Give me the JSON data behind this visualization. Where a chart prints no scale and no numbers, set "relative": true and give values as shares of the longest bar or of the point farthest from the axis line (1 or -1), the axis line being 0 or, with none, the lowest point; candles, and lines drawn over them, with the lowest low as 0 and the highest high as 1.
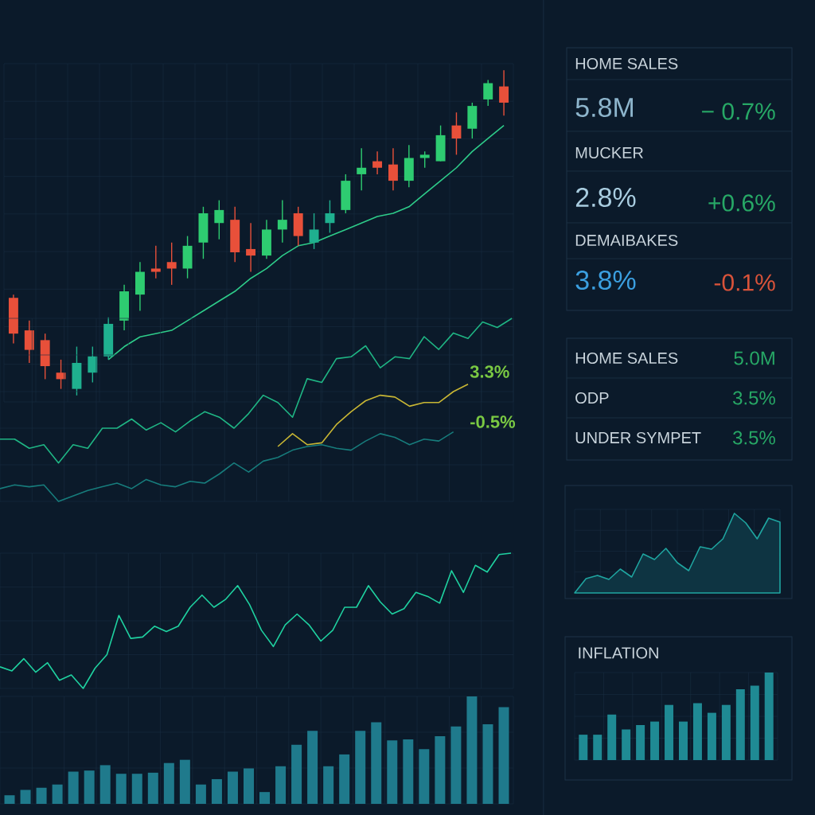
{
  "chart_data": [
    {
      "type": "candlestick",
      "relative": true,
      "grid": true,
      "categories": [
        null,
        null,
        null,
        null,
        null,
        null,
        null,
        null,
        null,
        null,
        null,
        null,
        null,
        null,
        null,
        null,
        null,
        null,
        null,
        null,
        null,
        null,
        null,
        null,
        null,
        null,
        null,
        null,
        null,
        null,
        null,
        null
      ],
      "ohlc": [
        [
          0.3,
          0.31,
          0.16,
          0.19
        ],
        [
          0.2,
          0.23,
          0.1,
          0.14
        ],
        [
          0.17,
          0.19,
          0.05,
          0.09
        ],
        [
          0.07,
          0.11,
          0.02,
          0.05
        ],
        [
          0.02,
          0.15,
          0.0,
          0.1
        ],
        [
          0.07,
          0.15,
          0.04,
          0.12
        ],
        [
          0.12,
          0.24,
          0.11,
          0.22
        ],
        [
          0.23,
          0.34,
          0.2,
          0.32
        ],
        [
          0.31,
          0.41,
          0.26,
          0.38
        ],
        [
          0.39,
          0.46,
          0.36,
          0.38
        ],
        [
          0.41,
          0.47,
          0.34,
          0.39
        ],
        [
          0.39,
          0.49,
          0.36,
          0.46
        ],
        [
          0.47,
          0.58,
          0.42,
          0.56
        ],
        [
          0.53,
          0.6,
          0.48,
          0.57
        ],
        [
          0.54,
          0.58,
          0.41,
          0.44
        ],
        [
          0.45,
          0.53,
          0.38,
          0.43
        ],
        [
          0.43,
          0.54,
          0.42,
          0.51
        ],
        [
          0.51,
          0.6,
          0.47,
          0.54
        ],
        [
          0.56,
          0.58,
          0.46,
          0.49
        ],
        [
          0.47,
          0.56,
          0.45,
          0.51
        ],
        [
          0.53,
          0.6,
          0.5,
          0.56
        ],
        [
          0.57,
          0.68,
          0.56,
          0.66
        ],
        [
          0.68,
          0.76,
          0.63,
          0.7
        ],
        [
          0.72,
          0.75,
          0.68,
          0.7
        ],
        [
          0.71,
          0.76,
          0.63,
          0.66
        ],
        [
          0.66,
          0.77,
          0.64,
          0.73
        ],
        [
          0.73,
          0.75,
          0.7,
          0.74
        ],
        [
          0.72,
          0.83,
          0.72,
          0.8
        ],
        [
          0.83,
          0.87,
          0.74,
          0.79
        ],
        [
          0.82,
          0.9,
          0.79,
          0.89
        ],
        [
          0.91,
          0.97,
          0.89,
          0.96
        ],
        [
          0.95,
          1.0,
          0.86,
          0.9
        ]
      ],
      "colors": [
        "#e8503a",
        "#e8503a",
        "#e8503a",
        "#e8503a",
        "#1fb08f",
        "#1fb08f",
        "#1fb08f",
        "#2ecc71",
        "#2ecc71",
        "#e8503a",
        "#e8503a",
        "#2ecc71",
        "#2ecc71",
        "#2ecc71",
        "#e8503a",
        "#e8503a",
        "#2ecc71",
        "#2ecc71",
        "#e8503a",
        "#1fb08f",
        "#1fb08f",
        "#2ecc71",
        "#2ecc71",
        "#e8503a",
        "#e8503a",
        "#2ecc71",
        "#2ecc71",
        "#2ecc71",
        "#e8503a",
        "#2ecc71",
        "#2ecc71",
        "#e8503a"
      ],
      "series": [
        {
          "type": "line",
          "color": "#2ecc8a",
          "values": [
            null,
            null,
            null,
            null,
            null,
            null,
            0.11,
            0.15,
            0.18,
            0.19,
            0.2,
            0.23,
            0.26,
            0.29,
            0.32,
            0.36,
            0.39,
            0.43,
            0.46,
            0.47,
            0.49,
            0.51,
            0.53,
            0.55,
            0.56,
            0.58,
            0.62,
            0.66,
            0.7,
            0.75,
            0.79,
            0.83
          ]
        }
      ]
    },
    {
      "type": "line",
      "relative": true,
      "grid": true,
      "categories": [
        null,
        null,
        null,
        null,
        null,
        null,
        null,
        null,
        null,
        null,
        null,
        null,
        null,
        null,
        null,
        null,
        null,
        null,
        null,
        null,
        null,
        null,
        null,
        null,
        null,
        null,
        null,
        null,
        null,
        null,
        null,
        null,
        null,
        null,
        null,
        null
      ],
      "series": [
        {
          "color": "#1fb584",
          "values": [
            0.34,
            0.34,
            0.29,
            0.31,
            0.21,
            0.31,
            0.29,
            0.4,
            0.4,
            0.45,
            0.39,
            0.43,
            0.38,
            0.44,
            0.49,
            0.46,
            0.4,
            0.48,
            0.58,
            0.54,
            0.46,
            0.67,
            0.65,
            0.78,
            0.79,
            0.85,
            0.73,
            0.79,
            0.78,
            0.9,
            0.83,
            0.92,
            0.89,
            0.98,
            0.95,
            1.0
          ]
        },
        {
          "color": "#177c7c",
          "values": [
            0.07,
            0.09,
            0.08,
            0.09,
            0.0,
            0.03,
            0.06,
            0.08,
            0.1,
            0.07,
            0.12,
            0.09,
            0.08,
            0.11,
            0.1,
            0.15,
            0.21,
            0.16,
            0.22,
            0.24,
            0.28,
            0.3,
            0.31,
            0.29,
            0.28,
            0.33,
            0.37,
            0.35,
            0.31,
            0.34,
            0.33,
            0.38,
            null,
            null,
            null,
            null
          ]
        },
        {
          "color": "#c8b634",
          "values": [
            null,
            null,
            null,
            null,
            null,
            null,
            null,
            null,
            null,
            null,
            null,
            null,
            null,
            null,
            null,
            null,
            null,
            null,
            null,
            0.3,
            0.37,
            0.31,
            0.32,
            0.42,
            0.49,
            0.55,
            0.58,
            0.57,
            0.52,
            0.54,
            0.54,
            0.6,
            0.64,
            null,
            null,
            null
          ]
        }
      ],
      "annotations": [
        "3.3%",
        "-0.5%"
      ]
    },
    {
      "type": "line",
      "relative": true,
      "grid": true,
      "color": "#1fd1a0",
      "categories": [
        null,
        null,
        null,
        null,
        null,
        null,
        null,
        null,
        null,
        null,
        null,
        null,
        null,
        null,
        null,
        null,
        null,
        null,
        null,
        null,
        null,
        null,
        null,
        null,
        null,
        null,
        null,
        null,
        null,
        null,
        null,
        null,
        null,
        null,
        null,
        null,
        null,
        null,
        null,
        null,
        null,
        null,
        null,
        null
      ],
      "values": [
        0.16,
        0.13,
        0.22,
        0.12,
        0.19,
        0.06,
        0.1,
        0,
        0.15,
        0.25,
        0.54,
        0.37,
        0.38,
        0.46,
        0.42,
        0.46,
        0.6,
        0.69,
        0.6,
        0.66,
        0.76,
        0.62,
        0.43,
        0.31,
        0.47,
        0.55,
        0.47,
        0.35,
        0.43,
        0.6,
        0.6,
        0.76,
        0.64,
        0.55,
        0.59,
        0.71,
        0.68,
        0.63,
        0.87,
        0.71,
        0.91,
        0.86,
        0.99,
        1.0
      ]
    },
    {
      "type": "bar",
      "relative": true,
      "grid": true,
      "color": "#1f7a8c",
      "categories": [
        null,
        null,
        null,
        null,
        null,
        null,
        null,
        null,
        null,
        null,
        null,
        null,
        null,
        null,
        null,
        null,
        null,
        null,
        null,
        null,
        null,
        null,
        null,
        null,
        null,
        null,
        null,
        null,
        null,
        null,
        null,
        null
      ],
      "values": [
        0.08,
        0.13,
        0.15,
        0.18,
        0.3,
        0.31,
        0.36,
        0.28,
        0.28,
        0.29,
        0.38,
        0.41,
        0.18,
        0.23,
        0.3,
        0.33,
        0.11,
        0.35,
        0.55,
        0.68,
        0.35,
        0.46,
        0.68,
        0.76,
        0.59,
        0.6,
        0.51,
        0.63,
        0.72,
        1.0,
        0.74,
        0.9
      ]
    },
    {
      "type": "other",
      "annotations": [
        "HOME SALES",
        "5.8M",
        "− 0.7%",
        "MUCKER",
        "2.8%",
        "+0.6%",
        "DEMAIBAKES",
        "3.8%",
        "-0.1%"
      ],
      "colors": [
        "#c9d4dc",
        "#8db5cc",
        "#27a866",
        "#c9d4dc",
        "#a9cde0",
        "#27a866",
        "#c9d4dc",
        "#3b9fe0",
        "#d9533a"
      ]
    },
    {
      "type": "other",
      "annotations": [
        "HOME SALES",
        "5.0M",
        "ODP",
        "3.5%",
        "UNDER SYMPET",
        "3.5%"
      ],
      "colors": [
        "#c9d4dc",
        "#27a866",
        "#c9d4dc",
        "#27a866",
        "#c9d4dc",
        "#27a866"
      ]
    },
    {
      "type": "area",
      "relative": true,
      "grid": true,
      "color": "#1fa5a0",
      "categories": [
        null,
        null,
        null,
        null,
        null,
        null,
        null,
        null,
        null,
        null,
        null,
        null,
        null,
        null,
        null,
        null,
        null,
        null,
        null
      ],
      "values": [
        0,
        0.18,
        0.22,
        0.17,
        0.3,
        0.2,
        0.49,
        0.42,
        0.56,
        0.38,
        0.28,
        0.58,
        0.55,
        0.68,
        1.0,
        0.88,
        0.68,
        0.94,
        0.89
      ]
    },
    {
      "type": "bar",
      "relative": true,
      "grid": true,
      "title": "INFLATION",
      "color": "#1f8a94",
      "categories": [
        null,
        null,
        null,
        null,
        null,
        null,
        null,
        null,
        null,
        null,
        null,
        null,
        null,
        null
      ],
      "values": [
        0.29,
        0.29,
        0.52,
        0.35,
        0.4,
        0.44,
        0.63,
        0.44,
        0.65,
        0.54,
        0.63,
        0.81,
        0.85,
        1.0
      ]
    }
  ]
}
